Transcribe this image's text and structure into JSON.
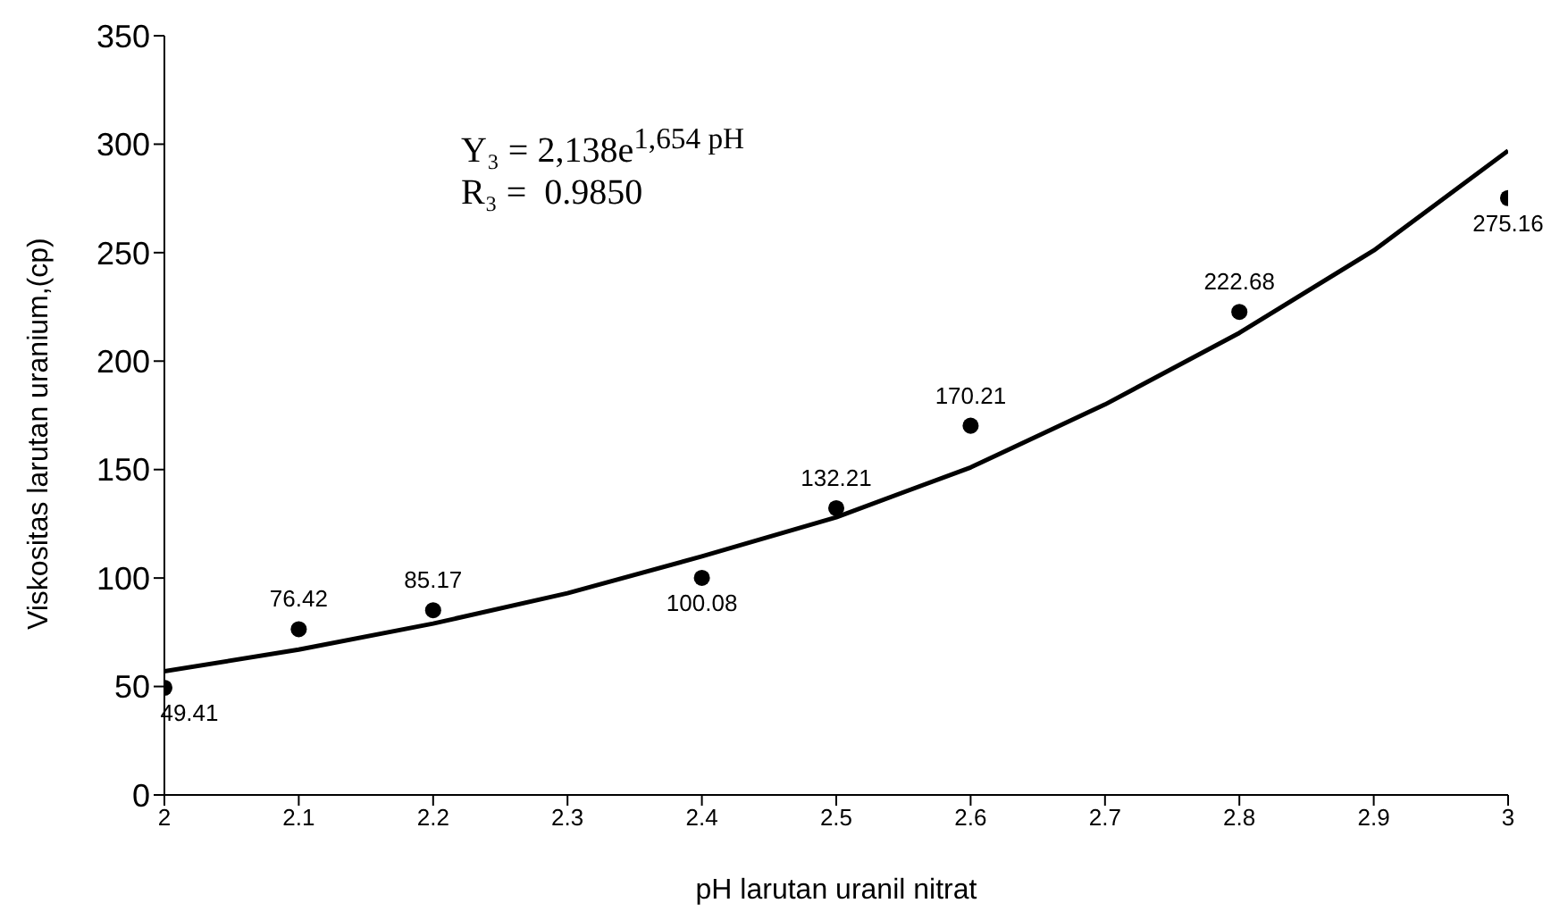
{
  "chart_data": {
    "type": "scatter",
    "xlabel": "pH larutan uranil nitrat",
    "ylabel": "Viskositas larutan uranium,(cp)",
    "x": [
      2,
      2.1,
      2.2,
      2.4,
      2.5,
      2.6,
      2.8,
      3
    ],
    "series": [
      {
        "color": "#000000",
        "values": [
          49.41,
          76.42,
          85.17,
          100.08,
          132.21,
          170.21,
          222.68,
          275.16
        ],
        "value_labels": [
          "49.41",
          "76.42",
          "85.17",
          "100.08",
          "132.21",
          "170.21",
          "222.68",
          "275.16"
        ],
        "marker": "circle"
      },
      {
        "type": "line",
        "color": "#000000",
        "x": [
          2,
          2.1,
          2.2,
          2.3,
          2.4,
          2.5,
          2.6,
          2.7,
          2.8,
          2.9,
          3
        ],
        "values": [
          57,
          67,
          79,
          93,
          110,
          128,
          151,
          180,
          213,
          251,
          297
        ],
        "marker": "none",
        "line_style": "solid"
      }
    ],
    "annotations": [
      "Y₃ = 2,138e$^{1,654 pH}$",
      "R₃ =  0.9850"
    ],
    "xlim": [
      2,
      3
    ],
    "xticks": [
      2,
      2.1,
      2.2,
      2.3,
      2.4,
      2.5,
      2.6,
      2.7,
      2.8,
      2.9,
      3
    ],
    "ylim": [
      0,
      350
    ],
    "yticks": [
      0,
      50,
      100,
      150,
      200,
      250,
      300,
      350
    ],
    "grid": false
  }
}
